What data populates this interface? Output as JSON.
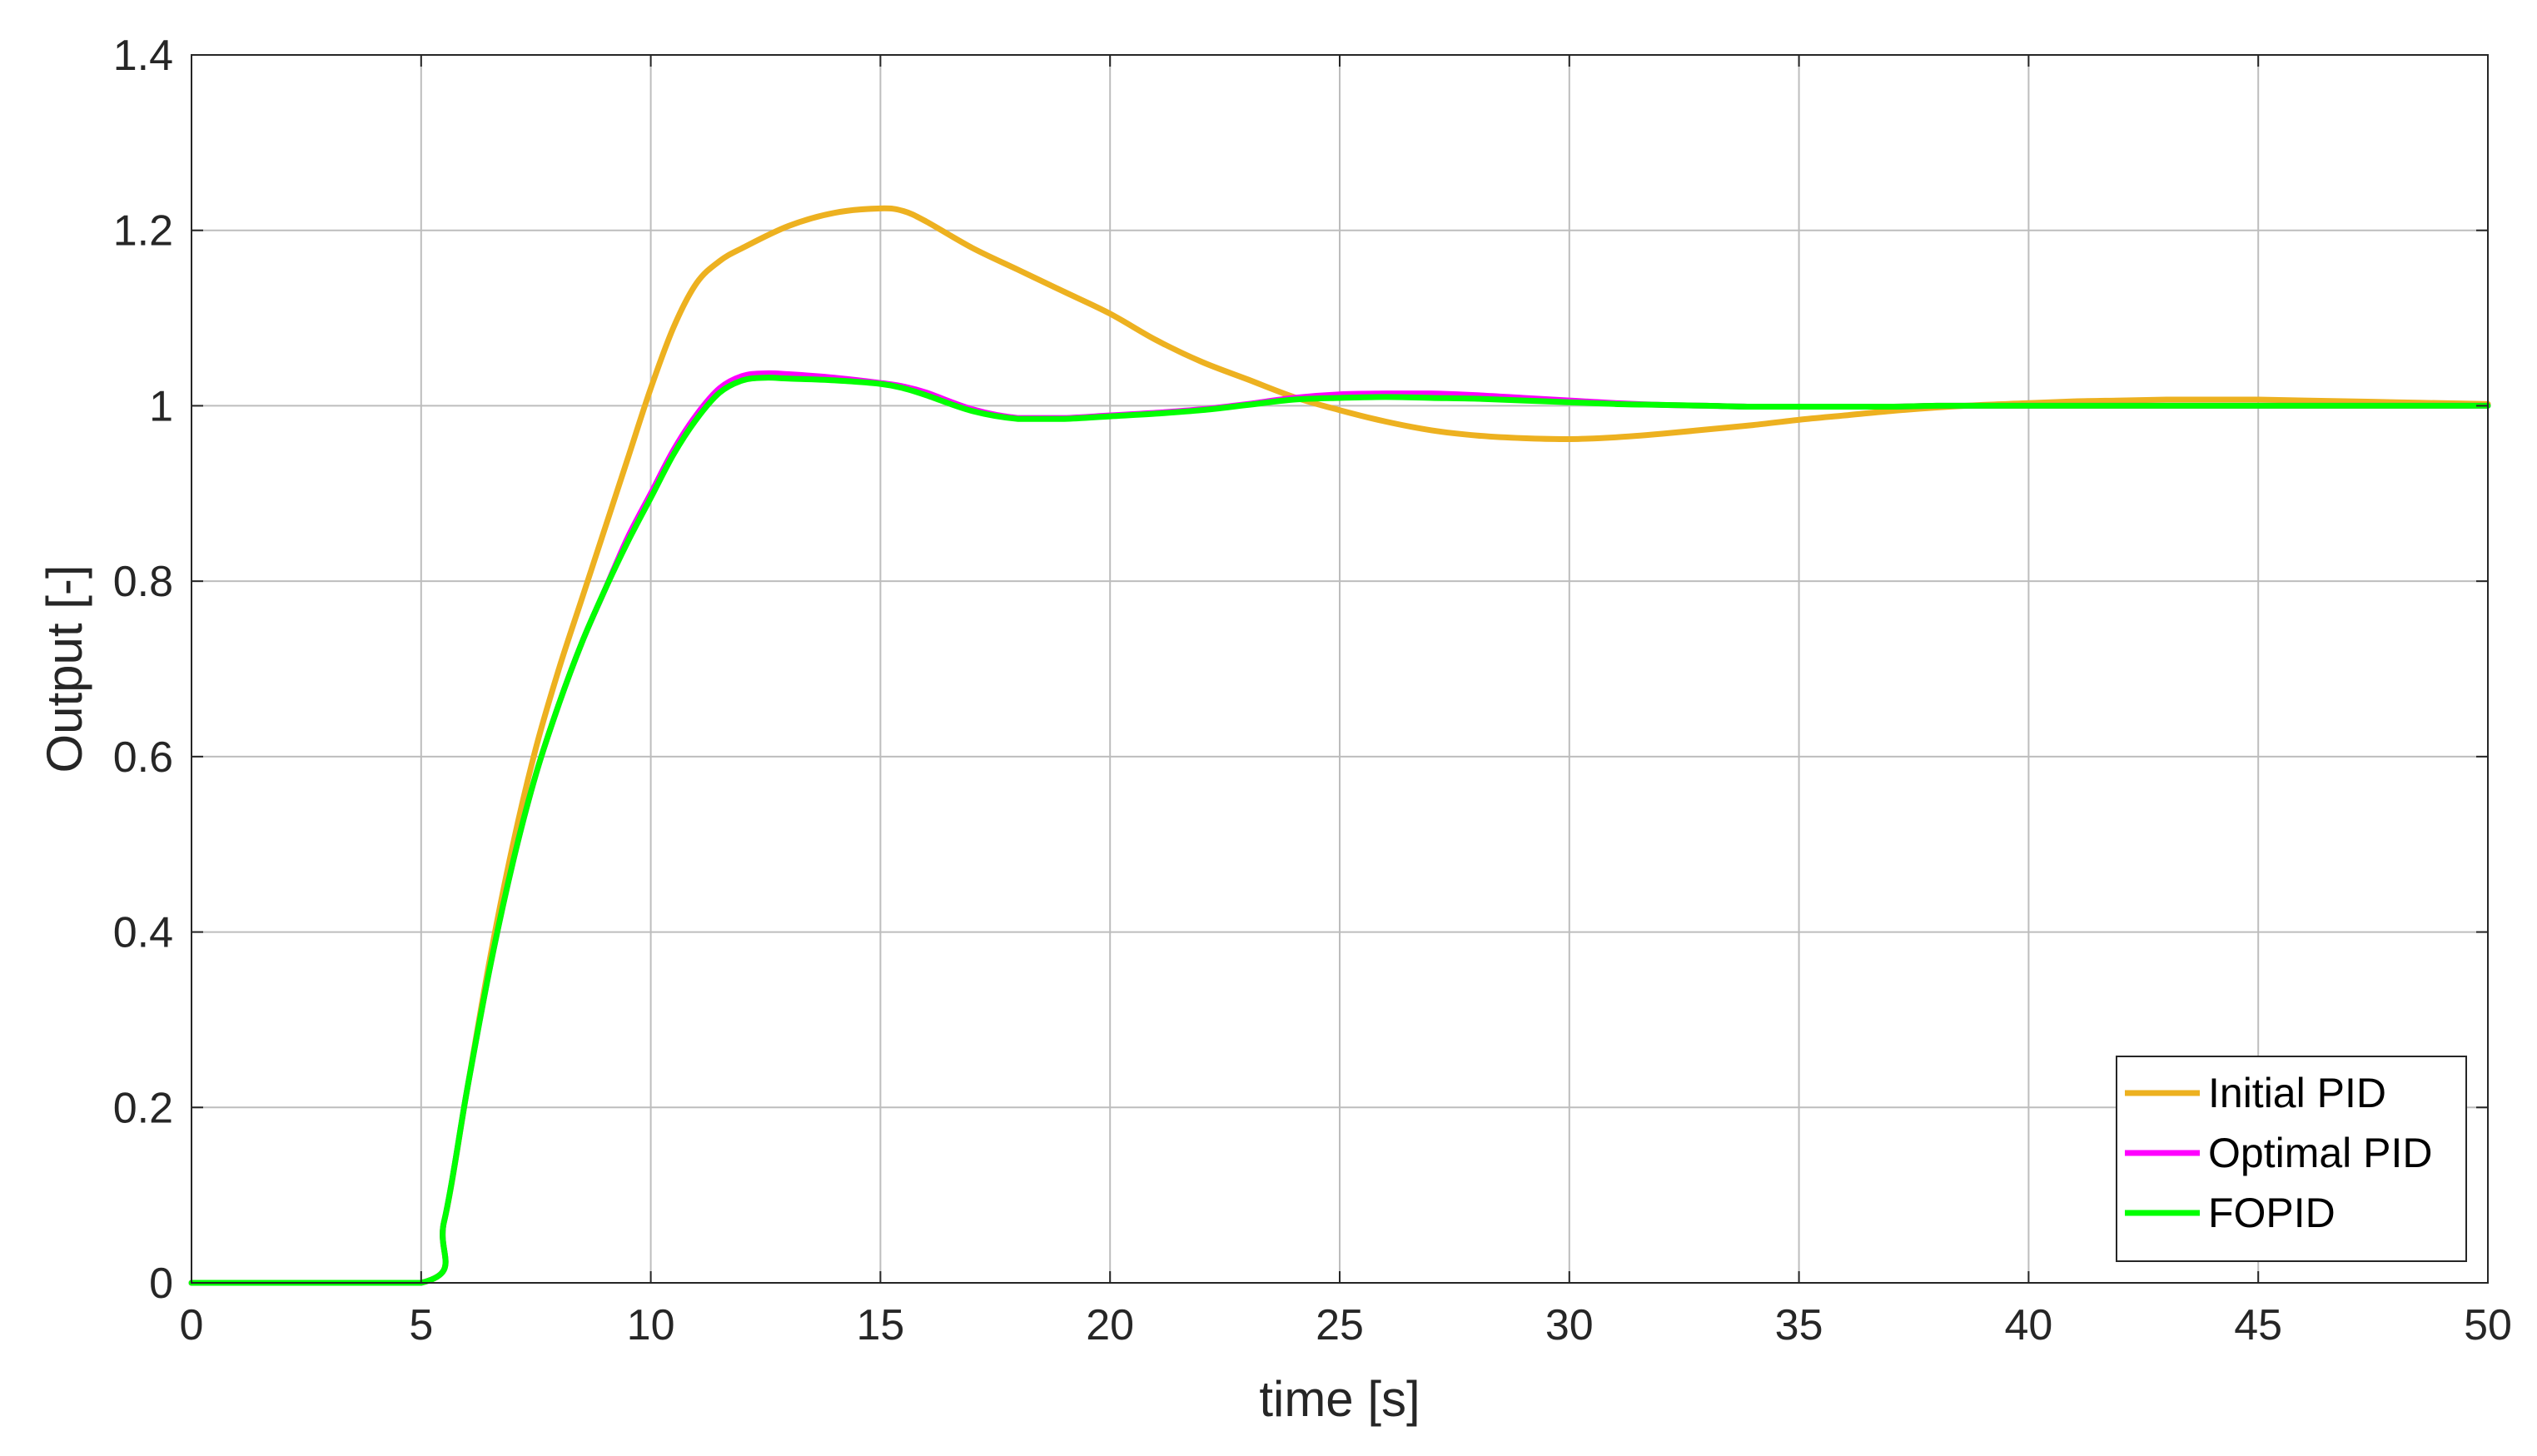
{
  "chart_data": {
    "type": "line",
    "title": "",
    "xlabel": "time [s]",
    "ylabel": "Output [-]",
    "xlim": [
      0,
      50
    ],
    "ylim": [
      0,
      1.4
    ],
    "xticks": [
      0,
      5,
      10,
      15,
      20,
      25,
      30,
      35,
      40,
      45,
      50
    ],
    "yticks": [
      0,
      0.2,
      0.4,
      0.6,
      0.8,
      1,
      1.2,
      1.4
    ],
    "xtick_labels": [
      "0",
      "5",
      "10",
      "15",
      "20",
      "25",
      "30",
      "35",
      "40",
      "45",
      "50"
    ],
    "ytick_labels": [
      "0",
      "0.2",
      "0.4",
      "0.6",
      "0.8",
      "1",
      "1.2",
      "1.4"
    ],
    "grid": true,
    "legend_position": "bottom-right",
    "series": [
      {
        "name": "Initial PID",
        "color": "#EDB120",
        "x": [
          0,
          5,
          5.5,
          6,
          6.5,
          7,
          7.5,
          8,
          8.5,
          9,
          9.5,
          10,
          10.5,
          11,
          11.5,
          12,
          13,
          14,
          15,
          15.5,
          16,
          17,
          18,
          19,
          20,
          21,
          22,
          23,
          24,
          25,
          26,
          27,
          28,
          29,
          30,
          31,
          32,
          33,
          34,
          35,
          36,
          37,
          38,
          39,
          40,
          41,
          42,
          43,
          44,
          45,
          46,
          47,
          48,
          49,
          50
        ],
        "y": [
          0,
          0,
          0.07,
          0.22,
          0.37,
          0.5,
          0.61,
          0.7,
          0.78,
          0.86,
          0.94,
          1.02,
          1.09,
          1.14,
          1.165,
          1.18,
          1.205,
          1.22,
          1.225,
          1.222,
          1.21,
          1.18,
          1.155,
          1.13,
          1.105,
          1.075,
          1.05,
          1.03,
          1.01,
          0.995,
          0.982,
          0.972,
          0.966,
          0.963,
          0.962,
          0.964,
          0.968,
          0.973,
          0.978,
          0.984,
          0.989,
          0.994,
          0.998,
          1.001,
          1.003,
          1.005,
          1.006,
          1.007,
          1.007,
          1.007,
          1.006,
          1.005,
          1.004,
          1.003,
          1.002
        ]
      },
      {
        "name": "Optimal PID",
        "color": "#FF00FF",
        "x": [
          0,
          5,
          5.5,
          6,
          6.5,
          7,
          7.5,
          8,
          8.5,
          9,
          9.5,
          10,
          10.5,
          11,
          11.5,
          12,
          12.5,
          13,
          14,
          15,
          15.5,
          16,
          17,
          18,
          19,
          20,
          21,
          22,
          23,
          24,
          25,
          26,
          27,
          28,
          29,
          30,
          31,
          32,
          33,
          34,
          35,
          36,
          37,
          38,
          39,
          40,
          45,
          50
        ],
        "y": [
          0,
          0,
          0.07,
          0.22,
          0.36,
          0.48,
          0.58,
          0.66,
          0.73,
          0.79,
          0.85,
          0.9,
          0.95,
          0.99,
          1.02,
          1.034,
          1.037,
          1.036,
          1.032,
          1.026,
          1.022,
          1.015,
          0.996,
          0.986,
          0.986,
          0.989,
          0.992,
          0.996,
          1.002,
          1.009,
          1.013,
          1.014,
          1.014,
          1.012,
          1.009,
          1.006,
          1.003,
          1.001,
          1.0,
          0.999,
          0.999,
          0.999,
          0.999,
          1.0,
          1.0,
          1.0,
          1.0,
          1.0
        ]
      },
      {
        "name": "FOPID",
        "color": "#00FF00",
        "x": [
          0,
          5,
          5.5,
          6,
          6.5,
          7,
          7.5,
          8,
          8.5,
          9,
          9.5,
          10,
          10.5,
          11,
          11.5,
          12,
          12.5,
          13,
          14,
          15,
          15.5,
          16,
          17,
          18,
          19,
          20,
          21,
          22,
          23,
          24,
          25,
          26,
          27,
          28,
          29,
          30,
          31,
          32,
          33,
          34,
          35,
          36,
          37,
          38,
          39,
          40,
          45,
          50
        ],
        "y": [
          0,
          0,
          0.07,
          0.22,
          0.36,
          0.48,
          0.58,
          0.66,
          0.73,
          0.79,
          0.845,
          0.895,
          0.945,
          0.985,
          1.015,
          1.029,
          1.032,
          1.031,
          1.029,
          1.025,
          1.02,
          1.012,
          0.994,
          0.985,
          0.985,
          0.988,
          0.991,
          0.995,
          1.001,
          1.007,
          1.009,
          1.01,
          1.009,
          1.008,
          1.006,
          1.004,
          1.002,
          1.001,
          1.0,
          0.999,
          0.999,
          0.999,
          0.999,
          1.0,
          1.0,
          1.0,
          1.0,
          1.0
        ]
      }
    ]
  }
}
